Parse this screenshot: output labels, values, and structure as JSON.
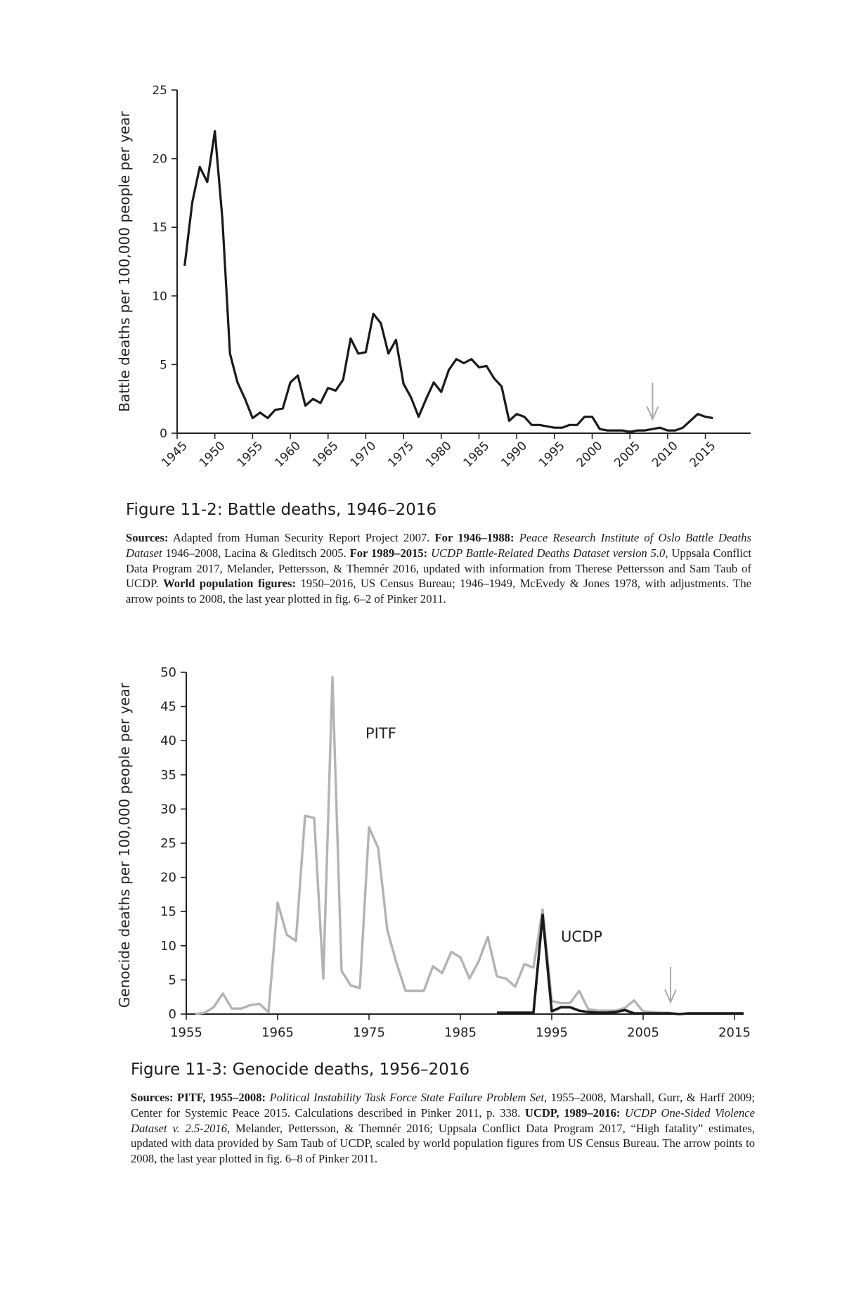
{
  "chart_data": [
    {
      "type": "line",
      "ylabel": "Battle deaths per 100,000 people per year",
      "xlim": [
        1945,
        2021
      ],
      "ylim": [
        0,
        25
      ],
      "x_ticks": [
        "1945",
        "1950",
        "1955",
        "1960",
        "1965",
        "1970",
        "1975",
        "1980",
        "1985",
        "1990",
        "1995",
        "2000",
        "2005",
        "2010",
        "2015"
      ],
      "y_ticks": [
        "0",
        "5",
        "10",
        "15",
        "20",
        "25"
      ],
      "annotation": {
        "type": "arrow",
        "x": 2008,
        "color": "#aaaaaa"
      },
      "series": [
        {
          "color": "#1a1a1a",
          "x": [
            1946,
            1947,
            1948,
            1949,
            1950,
            1951,
            1952,
            1953,
            1954,
            1955,
            1956,
            1957,
            1958,
            1959,
            1960,
            1961,
            1962,
            1963,
            1964,
            1965,
            1966,
            1967,
            1968,
            1969,
            1970,
            1971,
            1972,
            1973,
            1974,
            1975,
            1976,
            1977,
            1978,
            1979,
            1980,
            1981,
            1982,
            1983,
            1984,
            1985,
            1986,
            1987,
            1988,
            1989,
            1990,
            1991,
            1992,
            1993,
            1994,
            1995,
            1996,
            1997,
            1998,
            1999,
            2000,
            2001,
            2002,
            2003,
            2004,
            2005,
            2006,
            2007,
            2008,
            2009,
            2010,
            2011,
            2012,
            2013,
            2014,
            2015,
            2016
          ],
          "y": [
            12.2,
            16.8,
            19.4,
            18.3,
            22.0,
            15.6,
            5.8,
            3.7,
            2.5,
            1.1,
            1.5,
            1.1,
            1.7,
            1.8,
            3.7,
            4.2,
            2.0,
            2.5,
            2.2,
            3.3,
            3.1,
            3.9,
            6.9,
            5.8,
            5.9,
            8.7,
            8.0,
            5.8,
            6.8,
            3.6,
            2.6,
            1.2,
            2.5,
            3.7,
            3.0,
            4.6,
            5.4,
            5.1,
            5.4,
            4.8,
            4.9,
            4.0,
            3.4,
            0.9,
            1.4,
            1.2,
            0.6,
            0.6,
            0.5,
            0.4,
            0.4,
            0.6,
            0.6,
            1.2,
            1.2,
            0.3,
            0.2,
            0.2,
            0.2,
            0.1,
            0.2,
            0.2,
            0.3,
            0.4,
            0.2,
            0.2,
            0.4,
            0.9,
            1.4,
            1.2,
            1.1
          ]
        }
      ]
    },
    {
      "type": "line",
      "ylabel": "Genocide deaths per 100,000 people per year",
      "xlim": [
        1955,
        2016
      ],
      "ylim": [
        0,
        50
      ],
      "x_ticks": [
        "1955",
        "1965",
        "1975",
        "1985",
        "1995",
        "2005",
        "2015"
      ],
      "y_ticks": [
        "0",
        "5",
        "10",
        "15",
        "20",
        "25",
        "30",
        "35",
        "40",
        "45",
        "50"
      ],
      "annotation": {
        "type": "arrow",
        "x": 2008,
        "color": "#aaaaaa"
      },
      "series": [
        {
          "name": "PITF",
          "color": "#b3b3b3",
          "x": [
            1956,
            1957,
            1958,
            1959,
            1960,
            1961,
            1962,
            1963,
            1964,
            1965,
            1966,
            1967,
            1968,
            1969,
            1970,
            1971,
            1972,
            1973,
            1974,
            1975,
            1976,
            1977,
            1978,
            1979,
            1980,
            1981,
            1982,
            1983,
            1984,
            1985,
            1986,
            1987,
            1988,
            1989,
            1990,
            1991,
            1992,
            1993,
            1994,
            1995,
            1996,
            1997,
            1998,
            1999,
            2000,
            2001,
            2002,
            2003,
            2004,
            2005,
            2006,
            2007,
            2008
          ],
          "y": [
            0,
            0.2,
            1.0,
            3.0,
            0.8,
            0.8,
            1.3,
            1.5,
            0.3,
            16.3,
            11.6,
            10.7,
            29.0,
            28.7,
            5.2,
            49.3,
            6.3,
            4.2,
            3.8,
            27.3,
            24.3,
            12.3,
            7.5,
            3.4,
            3.4,
            3.4,
            7.0,
            6.0,
            9.1,
            8.3,
            5.2,
            7.7,
            11.3,
            5.5,
            5.2,
            4.0,
            7.3,
            6.8,
            15.3,
            1.9,
            1.6,
            1.6,
            3.4,
            0.7,
            0.5,
            0.5,
            0.5,
            0.9,
            2.0,
            0.4,
            0.3,
            0.2,
            0.2
          ]
        },
        {
          "name": "UCDP",
          "color": "#1a1a1a",
          "x": [
            1989,
            1990,
            1991,
            1992,
            1993,
            1994,
            1995,
            1996,
            1997,
            1998,
            1999,
            2000,
            2001,
            2002,
            2003,
            2004,
            2005,
            2006,
            2007,
            2008,
            2009,
            2010,
            2011,
            2012,
            2013,
            2014,
            2015,
            2016
          ],
          "y": [
            0.2,
            0.2,
            0.2,
            0.2,
            0.2,
            14.5,
            0.4,
            1.0,
            1.0,
            0.5,
            0.3,
            0.2,
            0.2,
            0.3,
            0.6,
            0.1,
            0.1,
            0.1,
            0.1,
            0.1,
            0,
            0.1,
            0.1,
            0.1,
            0.1,
            0.1,
            0.1,
            0.1
          ]
        }
      ]
    }
  ],
  "fig1": {
    "title": "Figure 11-2: Battle deaths, 1946–2016",
    "sources": {
      "b1": "Sources:",
      "t1": " Adapted from Human Security Report Project 2007. ",
      "b2": "For 1946–1988:",
      "t2": " ",
      "i1": "Peace Research Institute of Oslo Battle Deaths Dataset",
      "t3": " 1946–2008, Lacina & Gleditsch 2005. ",
      "b3": "For 1989–2015:",
      "t4": " ",
      "i2": "UCDP Battle-Related Deaths Dataset version 5.0,",
      "t5": " Uppsala Conflict Data Program 2017, Melander, Pettersson, & Themnér 2016, updated with information from Therese Pettersson and Sam Taub of UCDP. ",
      "b4": "World population figures:",
      "t6": " 1950–2016, US Census Bureau; 1946–1949, McEvedy & Jones 1978, with adjustments. The arrow points to 2008, the last year plotted in fig. 6–2 of Pinker 2011."
    }
  },
  "fig2": {
    "title": "Figure 11-3: Genocide deaths, 1956–2016",
    "sources": {
      "b1": "Sources: PITF, 1955–2008:",
      "t1": " ",
      "i1": "Political Instability Task Force State Failure Problem Set,",
      "t2": " 1955–2008, Marshall, Gurr, & Harff 2009; Center for Systemic Peace 2015. Calculations described in Pinker 2011, p. 338. ",
      "b2": "UCDP, 1989–2016:",
      "t3": " ",
      "i2": "UCDP One-Sided Violence Dataset v. 2.5-2016,",
      "t4": " Melander, Pettersson, & Themnér 2016; Uppsala Conflict Data Program 2017, “High fatality” estimates, updated with data provided by Sam Taub of UCDP, scaled by world population figures from US Census Bureau. The arrow points to 2008, the last year plotted in fig. 6–8 of Pinker 2011."
    }
  }
}
